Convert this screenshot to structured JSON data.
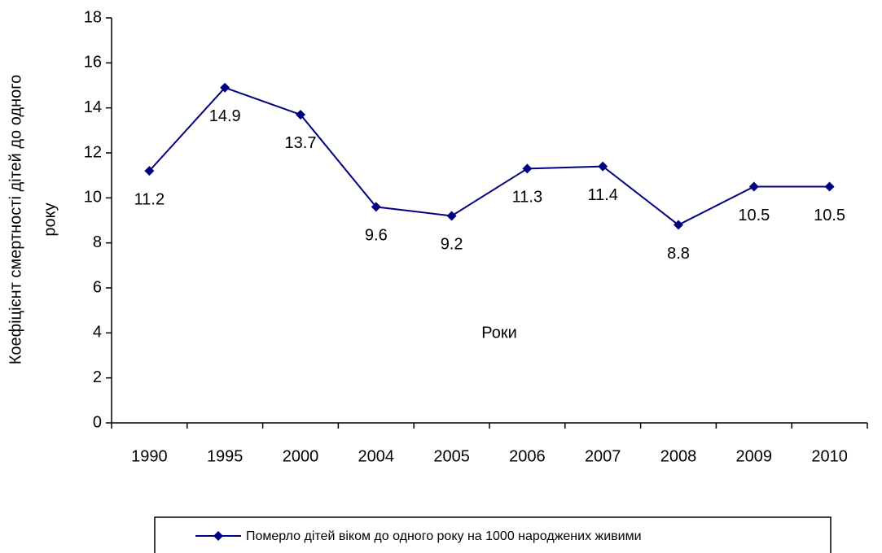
{
  "chart_data": {
    "type": "line",
    "x_label": "Роки",
    "y_label": [
      "Коефіцієнт смертності дітей до одного",
      "року"
    ],
    "categories": [
      "1990",
      "1995",
      "2000",
      "2004",
      "2005",
      "2006",
      "2007",
      "2008",
      "2009",
      "2010"
    ],
    "series": [
      {
        "name": "Померло дітей віком до одного року на 1000 народжених живими",
        "color": "#000080",
        "values": [
          11.2,
          14.9,
          13.7,
          9.6,
          9.2,
          11.3,
          11.4,
          8.8,
          10.5,
          10.5
        ]
      }
    ],
    "ylim": [
      0,
      18
    ],
    "yticks": [
      0,
      2,
      4,
      6,
      8,
      10,
      12,
      14,
      16,
      18
    ],
    "legend": "bottom"
  }
}
